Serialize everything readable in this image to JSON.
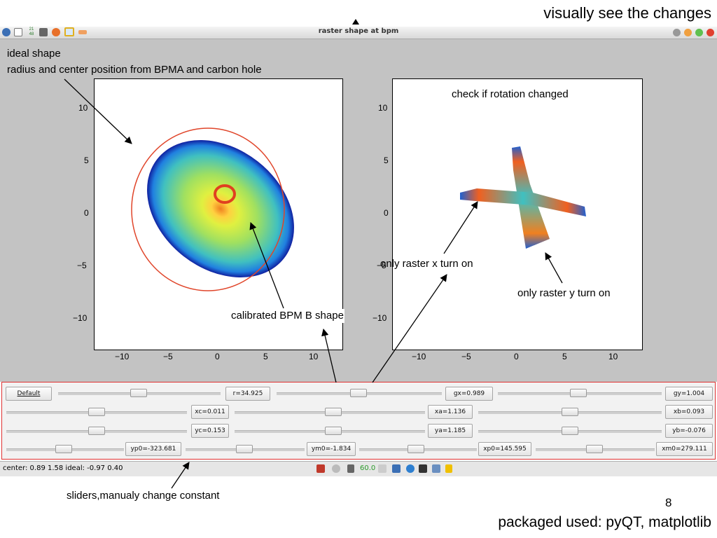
{
  "slide": {
    "title": "visually see the changes",
    "footer": "packaged used: pyQT, matplotlib",
    "page_number": "8"
  },
  "window": {
    "title": "raster shape at bpm",
    "toolbar_icons": [
      "pin-icon",
      "chart-icon",
      "calendar-icon",
      "grid-icon",
      "firefox-icon",
      "window-icon",
      "glasses-icon"
    ],
    "toolbar_icon_text": "21 48"
  },
  "annotations": {
    "ideal_shape": "ideal shape",
    "radius_center": "radius and center position from BPMA and carbon hole",
    "rotation": "check if rotation changed",
    "calibrated": "calibrated BPM B shape",
    "raster_x": "only raster x turn on",
    "raster_y": "only raster y turn on",
    "sliders": "sliders,manualy change constant"
  },
  "plots": {
    "x_ticks": [
      "−10",
      "−5",
      "0",
      "5",
      "10"
    ],
    "y_ticks": [
      "10",
      "5",
      "0",
      "−5",
      "−10"
    ]
  },
  "controls": {
    "default_label": "Default",
    "row1": [
      "r=34.925",
      "gx=0.989",
      "gy=1.004"
    ],
    "row2": [
      "xc=0.011",
      "xa=1.136",
      "xb=0.093"
    ],
    "row3": [
      "yc=0.153",
      "ya=1.185",
      "yb=-0.076"
    ],
    "row4": [
      "yp0=-323.681",
      "ym0=-1.834",
      "xp0=145.595",
      "xm0=279.111"
    ]
  },
  "status": {
    "text": "center: 0.89 1.58 ideal: -0.97  0.40",
    "tray_value": "60.0"
  },
  "colors": {
    "panel_border": "#e03030",
    "ideal_circle": "#e0452a",
    "canvas_bg": "#c3c3c3"
  }
}
